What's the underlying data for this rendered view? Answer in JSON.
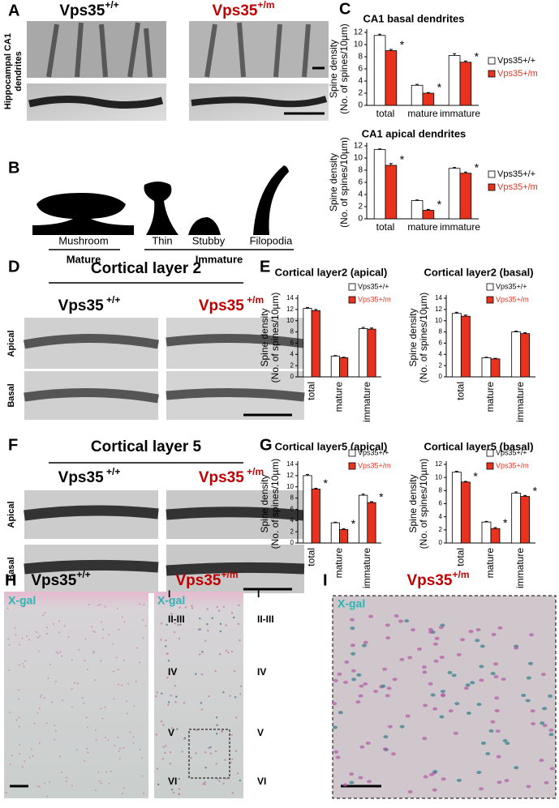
{
  "panels": {
    "A": {
      "letter": "A",
      "side_label": [
        "Hippocampal CA1",
        "dendrites"
      ],
      "genotypes": [
        {
          "base": "Vps35",
          "sup": "+/+"
        },
        {
          "base": "Vps35",
          "sup": "+/m"
        }
      ]
    },
    "B": {
      "letter": "B",
      "shapes": [
        "Mushroom",
        "Thin",
        "Stubby",
        "Filopodia"
      ],
      "groups": [
        "Mature",
        "Immature"
      ]
    },
    "C": {
      "letter": "C"
    },
    "D": {
      "letter": "D",
      "title": "Cortical layer 2",
      "genotypes": [
        {
          "base": "Vps35",
          "sup": " +/+"
        },
        {
          "base": "Vps35",
          "sup": " +/m"
        }
      ],
      "rows": [
        "Apical",
        "Basal"
      ]
    },
    "E": {
      "letter": "E"
    },
    "F": {
      "letter": "F",
      "title": "Cortical layer 5",
      "genotypes": [
        {
          "base": "Vps35",
          "sup": " +/+"
        },
        {
          "base": "Vps35",
          "sup": " +/m"
        }
      ],
      "rows": [
        "Apical",
        "Basal"
      ]
    },
    "G": {
      "letter": "G"
    },
    "H": {
      "letter": "H",
      "genotypes": [
        {
          "base": "Vps35",
          "sup": "+/+"
        },
        {
          "base": "Vps35",
          "sup": "+/m"
        }
      ],
      "stain": "X-gal",
      "layers": [
        "I",
        "II-III",
        "IV",
        "V",
        "VI"
      ]
    },
    "I": {
      "letter": "I",
      "genotype": {
        "base": "Vps35",
        "sup": "+/m"
      },
      "stain": "X-gal"
    }
  },
  "chart_data": [
    {
      "type": "bar",
      "title": "CA1 basal dendrites",
      "ylabel": [
        "Spine density",
        "(No. of spines/10µm)"
      ],
      "categories": [
        "total",
        "mature",
        "immature"
      ],
      "series": [
        {
          "name": "Vps35+/+",
          "color": "#ffffff",
          "values": [
            11.5,
            3.3,
            8.2
          ],
          "errors": [
            0.2,
            0.15,
            0.3
          ]
        },
        {
          "name": "Vps35+/m",
          "color": "#e8321e",
          "values": [
            9.0,
            2.0,
            7.1
          ],
          "errors": [
            0.2,
            0.1,
            0.2
          ],
          "annotations": [
            "*",
            "*",
            "*"
          ]
        }
      ],
      "ylim": [
        0,
        12
      ],
      "yticks": [
        0,
        2,
        4,
        6,
        8,
        10,
        12
      ]
    },
    {
      "type": "bar",
      "title": "CA1 apical dendrites",
      "ylabel": [
        "Spine density",
        "(No. of spines/10µm)"
      ],
      "categories": [
        "total",
        "mature",
        "immature"
      ],
      "series": [
        {
          "name": "Vps35+/+",
          "color": "#ffffff",
          "values": [
            11.4,
            3.0,
            8.3
          ],
          "errors": [
            0.1,
            0.1,
            0.15
          ]
        },
        {
          "name": "Vps35+/m",
          "color": "#e8321e",
          "values": [
            8.8,
            1.4,
            7.5
          ],
          "errors": [
            0.3,
            0.15,
            0.2
          ],
          "annotations": [
            "*",
            "*",
            "*"
          ]
        }
      ],
      "ylim": [
        0,
        12
      ],
      "yticks": [
        0,
        2,
        4,
        6,
        8,
        10,
        12
      ]
    },
    {
      "type": "bar",
      "title": "Cortical layer2 (apical)",
      "ylabel": [
        "Spine density",
        "(No. of spines/10µm)"
      ],
      "categories": [
        "total",
        "mature",
        "immature"
      ],
      "series": [
        {
          "name": "Vps35+/+",
          "color": "#ffffff",
          "values": [
            12.2,
            3.7,
            8.6
          ],
          "errors": [
            0.15,
            0.1,
            0.2
          ]
        },
        {
          "name": "Vps35+/m",
          "color": "#e8321e",
          "values": [
            11.8,
            3.4,
            8.5
          ],
          "errors": [
            0.2,
            0.1,
            0.2
          ]
        }
      ],
      "ylim": [
        0,
        14
      ],
      "yticks": [
        0,
        2,
        4,
        6,
        8,
        10,
        12,
        14
      ]
    },
    {
      "type": "bar",
      "title": "Cortical layer2 (basal)",
      "ylabel": [
        "Spine density",
        "(No. of spines/10µm)"
      ],
      "categories": [
        "total",
        "mature",
        "immature"
      ],
      "series": [
        {
          "name": "Vps35+/+",
          "color": "#ffffff",
          "values": [
            11.3,
            3.4,
            8.0
          ],
          "errors": [
            0.2,
            0.1,
            0.15
          ]
        },
        {
          "name": "Vps35+/m",
          "color": "#e8321e",
          "values": [
            10.8,
            3.2,
            7.7
          ],
          "errors": [
            0.2,
            0.1,
            0.15
          ]
        }
      ],
      "ylim": [
        0,
        14
      ],
      "yticks": [
        0,
        2,
        4,
        6,
        8,
        10,
        12,
        14
      ]
    },
    {
      "type": "bar",
      "title": "Cortical layer5 (apical)",
      "ylabel": [
        "Spine density",
        "(No. of spines/10µm)"
      ],
      "categories": [
        "total",
        "mature",
        "immature"
      ],
      "series": [
        {
          "name": "Vps35+/+",
          "color": "#ffffff",
          "values": [
            12.0,
            3.6,
            8.5
          ],
          "errors": [
            0.2,
            0.1,
            0.2
          ]
        },
        {
          "name": "Vps35+/m",
          "color": "#e8321e",
          "values": [
            9.6,
            2.4,
            7.2
          ],
          "errors": [
            0.15,
            0.15,
            0.15
          ],
          "annotations": [
            "*",
            "*",
            "*"
          ]
        }
      ],
      "ylim": [
        0,
        14
      ],
      "yticks": [
        0,
        2,
        4,
        6,
        8,
        10,
        12,
        14
      ]
    },
    {
      "type": "bar",
      "title": "Cortical layer5 (basal)",
      "ylabel": [
        "Spine density",
        "(No. of spines/10µm)"
      ],
      "categories": [
        "total",
        "mature",
        "immature"
      ],
      "series": [
        {
          "name": "Vps35+/+",
          "color": "#ffffff",
          "values": [
            10.8,
            3.2,
            7.6
          ],
          "errors": [
            0.15,
            0.1,
            0.2
          ]
        },
        {
          "name": "Vps35+/m",
          "color": "#e8321e",
          "values": [
            9.3,
            2.2,
            7.1
          ],
          "errors": [
            0.1,
            0.15,
            0.15
          ],
          "annotations": [
            "*",
            "*",
            "*"
          ]
        }
      ],
      "ylim": [
        0,
        12
      ],
      "yticks": [
        0,
        2,
        4,
        6,
        8,
        10,
        12
      ]
    }
  ]
}
